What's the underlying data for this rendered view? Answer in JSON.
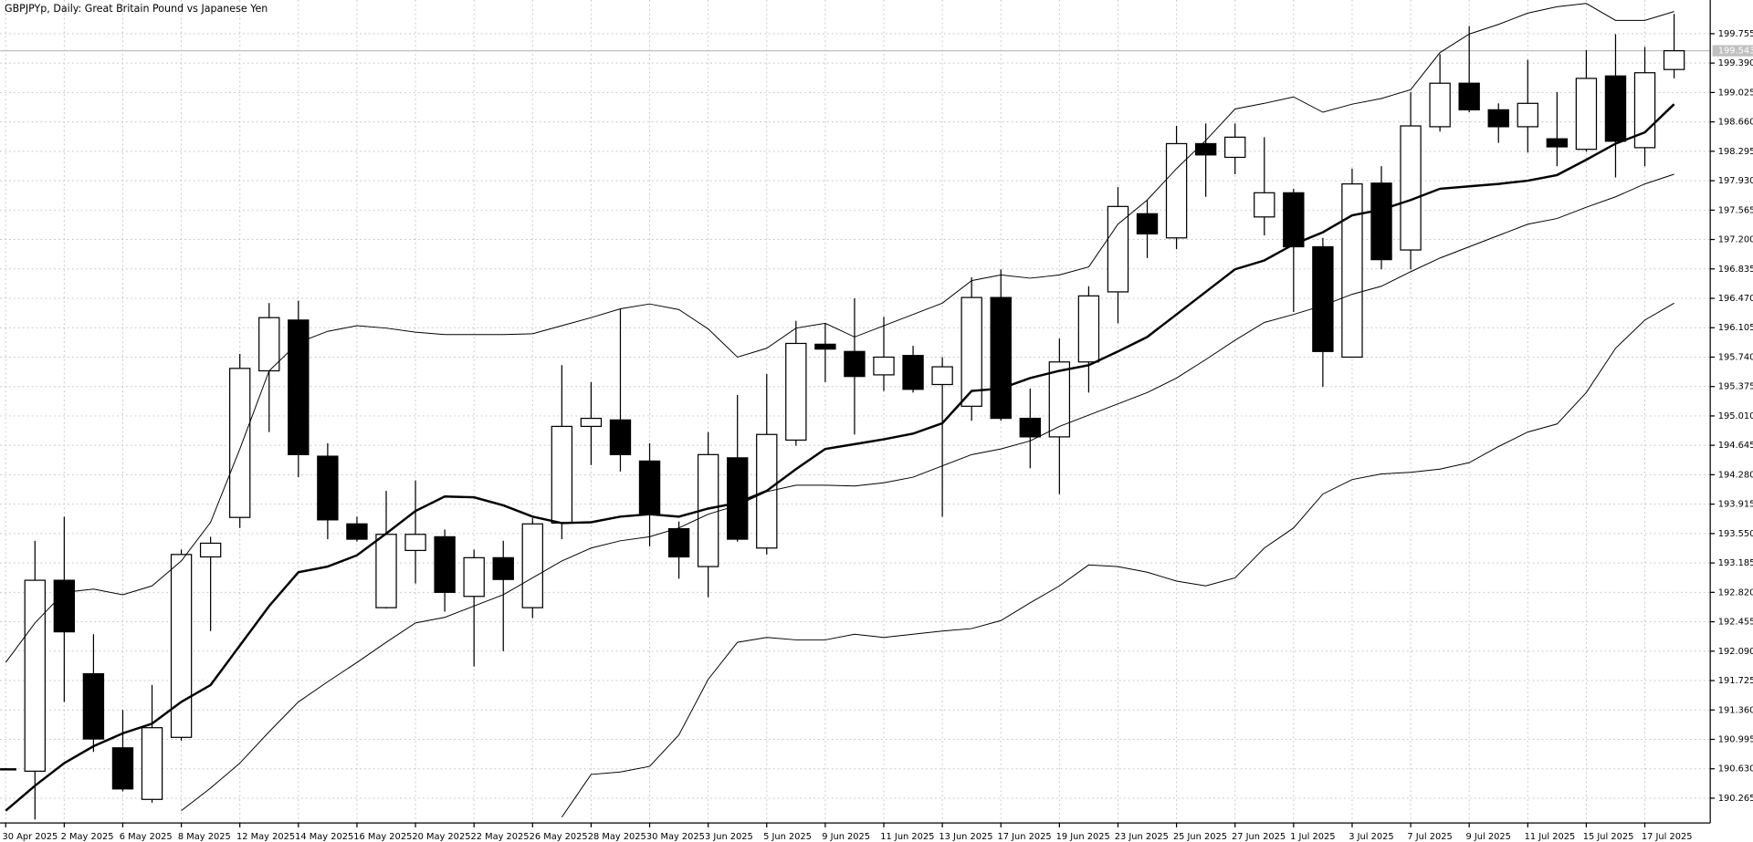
{
  "chart_data": {
    "type": "candlestick",
    "title": "GBPJPYp, Daily:  Great Britain Pound vs Japanese Yen",
    "categories": [
      "30 Apr 2025",
      null,
      "2 May 2025",
      null,
      "6 May 2025",
      null,
      "8 May 2025",
      null,
      "12 May 2025",
      null,
      "14 May 2025",
      null,
      "16 May 2025",
      null,
      "20 May 2025",
      null,
      "22 May 2025",
      null,
      "26 May 2025",
      null,
      "28 May 2025",
      null,
      "30 May 2025",
      null,
      "3 Jun 2025",
      null,
      "5 Jun 2025",
      null,
      "9 Jun 2025",
      null,
      "11 Jun 2025",
      null,
      "13 Jun 2025",
      null,
      "17 Jun 2025",
      null,
      "19 Jun 2025",
      null,
      "23 Jun 2025",
      null,
      "25 Jun 2025",
      null,
      "27 Jun 2025",
      null,
      "1 Jul 2025",
      null,
      "3 Jul 2025",
      null,
      "7 Jul 2025",
      null,
      "9 Jul 2025",
      null,
      "11 Jul 2025",
      null,
      "15 Jul 2025",
      null,
      "17 Jul 2025",
      null
    ],
    "open": [
      190.62,
      190.6,
      192.97,
      191.81,
      190.89,
      190.25,
      191.02,
      193.26,
      193.75,
      195.57,
      196.2,
      194.51,
      193.67,
      192.63,
      193.34,
      193.51,
      192.77,
      193.25,
      192.63,
      193.68,
      194.88,
      194.96,
      194.45,
      193.61,
      193.14,
      194.49,
      193.37,
      194.71,
      195.9,
      195.81,
      195.52,
      195.76,
      195.4,
      195.13,
      196.48,
      194.98,
      194.75,
      195.68,
      196.55,
      197.52,
      197.22,
      198.39,
      198.22,
      197.48,
      197.78,
      197.11,
      195.74,
      197.9,
      197.07,
      198.6,
      199.14,
      198.81,
      198.6,
      198.45,
      198.32,
      199.23,
      198.34,
      199.31
    ],
    "high": [
      190.64,
      193.46,
      193.76,
      192.3,
      191.36,
      191.67,
      193.35,
      193.51,
      195.78,
      196.41,
      196.44,
      194.67,
      193.76,
      194.08,
      194.21,
      193.6,
      193.35,
      193.46,
      193.74,
      195.64,
      195.43,
      196.34,
      194.67,
      193.7,
      194.81,
      195.27,
      195.53,
      196.19,
      196.16,
      196.47,
      196.24,
      195.88,
      195.74,
      196.73,
      196.83,
      195.35,
      195.97,
      196.62,
      197.85,
      197.69,
      198.61,
      198.64,
      198.64,
      198.47,
      197.83,
      197.22,
      198.08,
      198.11,
      199.03,
      199.5,
      199.85,
      198.89,
      199.43,
      199.03,
      199.55,
      199.75,
      199.59,
      200.0
    ],
    "low": [
      190.61,
      190.0,
      191.46,
      190.84,
      190.35,
      190.21,
      190.98,
      192.34,
      193.62,
      194.81,
      194.25,
      193.48,
      193.45,
      192.62,
      192.93,
      192.58,
      191.9,
      192.09,
      192.5,
      193.48,
      194.4,
      194.32,
      193.39,
      192.99,
      192.76,
      193.45,
      193.29,
      194.64,
      195.43,
      194.78,
      195.32,
      195.3,
      193.76,
      194.95,
      194.95,
      194.36,
      194.04,
      195.3,
      196.16,
      196.97,
      197.08,
      197.73,
      198.01,
      197.25,
      196.3,
      195.37,
      195.74,
      196.83,
      196.83,
      198.54,
      198.78,
      198.4,
      198.28,
      198.11,
      198.29,
      197.97,
      198.11,
      199.2
    ],
    "close": [
      190.63,
      192.97,
      192.33,
      191.0,
      190.38,
      191.14,
      193.29,
      193.43,
      195.6,
      196.23,
      194.53,
      193.72,
      193.48,
      193.54,
      193.54,
      192.82,
      193.25,
      192.98,
      193.67,
      194.88,
      194.98,
      194.53,
      193.79,
      193.26,
      194.53,
      193.48,
      194.78,
      195.91,
      195.84,
      195.5,
      195.74,
      195.34,
      195.62,
      196.48,
      194.98,
      194.75,
      195.68,
      196.5,
      197.61,
      197.27,
      198.39,
      198.25,
      198.47,
      197.78,
      197.11,
      195.81,
      197.89,
      196.95,
      198.61,
      199.14,
      198.81,
      198.6,
      198.89,
      198.35,
      199.2,
      198.42,
      199.27,
      199.543
    ],
    "up_color": "#ffffff",
    "down_color": "#000000",
    "lines": [
      {
        "color": "#000000",
        "width": 2,
        "values": [
          190.11,
          190.42,
          190.7,
          190.91,
          191.07,
          191.19,
          191.46,
          191.67,
          192.16,
          192.65,
          193.07,
          193.14,
          193.28,
          193.55,
          193.83,
          194.01,
          194.0,
          193.9,
          193.76,
          193.68,
          193.69,
          193.76,
          193.79,
          193.76,
          193.86,
          193.93,
          194.08,
          194.35,
          194.6,
          194.66,
          194.72,
          194.79,
          194.92,
          195.32,
          195.35,
          195.48,
          195.57,
          195.64,
          195.81,
          195.99,
          196.27,
          196.55,
          196.83,
          196.94,
          197.14,
          197.29,
          197.5,
          197.57,
          197.69,
          197.83,
          197.86,
          197.89,
          197.93,
          198.0,
          198.19,
          198.39,
          198.53,
          198.88
        ]
      },
      {
        "color": "#000000",
        "width": 0.8,
        "values": [
          191.95,
          192.44,
          192.82,
          192.86,
          192.79,
          192.9,
          193.21,
          193.69,
          194.6,
          195.57,
          195.92,
          196.06,
          196.13,
          196.1,
          196.05,
          196.02,
          196.02,
          196.02,
          196.03,
          196.13,
          196.23,
          196.34,
          196.4,
          196.33,
          196.09,
          195.74,
          195.85,
          196.1,
          196.16,
          195.99,
          196.13,
          196.27,
          196.41,
          196.69,
          196.76,
          196.72,
          196.76,
          196.86,
          197.39,
          197.69,
          198.08,
          198.43,
          198.82,
          198.89,
          198.97,
          198.78,
          198.88,
          198.95,
          199.06,
          199.52,
          199.75,
          199.87,
          200.01,
          200.09,
          200.13,
          199.92,
          199.92,
          200.03
        ]
      },
      {
        "color": "#000000",
        "width": 0.8,
        "values": [
          null,
          null,
          null,
          null,
          null,
          null,
          190.11,
          190.39,
          190.7,
          191.09,
          191.46,
          191.71,
          191.95,
          192.2,
          192.44,
          192.51,
          192.65,
          192.79,
          193.0,
          193.21,
          193.37,
          193.46,
          193.51,
          193.62,
          193.79,
          193.9,
          194.07,
          194.15,
          194.15,
          194.14,
          194.18,
          194.25,
          194.39,
          194.53,
          194.6,
          194.7,
          194.88,
          195.02,
          195.16,
          195.3,
          195.48,
          195.71,
          195.95,
          196.17,
          196.27,
          196.38,
          196.52,
          196.62,
          196.8,
          196.97,
          197.11,
          197.25,
          197.39,
          197.46,
          197.6,
          197.73,
          197.89,
          198.01
        ]
      },
      {
        "color": "#000000",
        "width": 0.8,
        "values": [
          null,
          null,
          null,
          null,
          null,
          null,
          null,
          null,
          null,
          null,
          null,
          null,
          null,
          null,
          null,
          null,
          null,
          null,
          null,
          190.03,
          190.56,
          190.59,
          190.66,
          191.05,
          191.74,
          192.2,
          192.26,
          192.23,
          192.23,
          192.3,
          192.26,
          192.3,
          192.34,
          192.37,
          192.47,
          192.69,
          192.9,
          193.16,
          193.14,
          193.07,
          192.96,
          192.9,
          193.0,
          193.37,
          193.62,
          194.04,
          194.22,
          194.29,
          194.31,
          194.35,
          194.43,
          194.63,
          194.81,
          194.91,
          195.3,
          195.85,
          196.2,
          196.41
        ]
      }
    ],
    "last_price": 199.543,
    "ylim": [
      189.958,
      200.173
    ],
    "yticks": [
      199.755,
      {
        "value": 199.39,
        "label": "199.390"
      },
      199.025,
      {
        "value": 198.66,
        "label": "198.660"
      },
      198.295,
      {
        "value": 197.93,
        "label": "197.930"
      },
      197.565,
      {
        "value": 197.2,
        "label": "197.200"
      },
      196.835,
      {
        "value": 196.47,
        "label": "196.470"
      },
      196.105,
      {
        "value": 195.74,
        "label": "195.740"
      },
      195.375,
      {
        "value": 195.01,
        "label": "195.010"
      },
      194.645,
      {
        "value": 194.28,
        "label": "194.280"
      },
      193.915,
      {
        "value": 193.55,
        "label": "193.550"
      },
      193.185,
      {
        "value": 192.82,
        "label": "192.820"
      },
      192.455,
      {
        "value": 192.09,
        "label": "192.090"
      },
      191.725,
      {
        "value": 191.36,
        "label": "191.360"
      },
      190.995,
      {
        "value": 190.63,
        "label": "190.630"
      },
      190.265
    ],
    "grid": true
  }
}
